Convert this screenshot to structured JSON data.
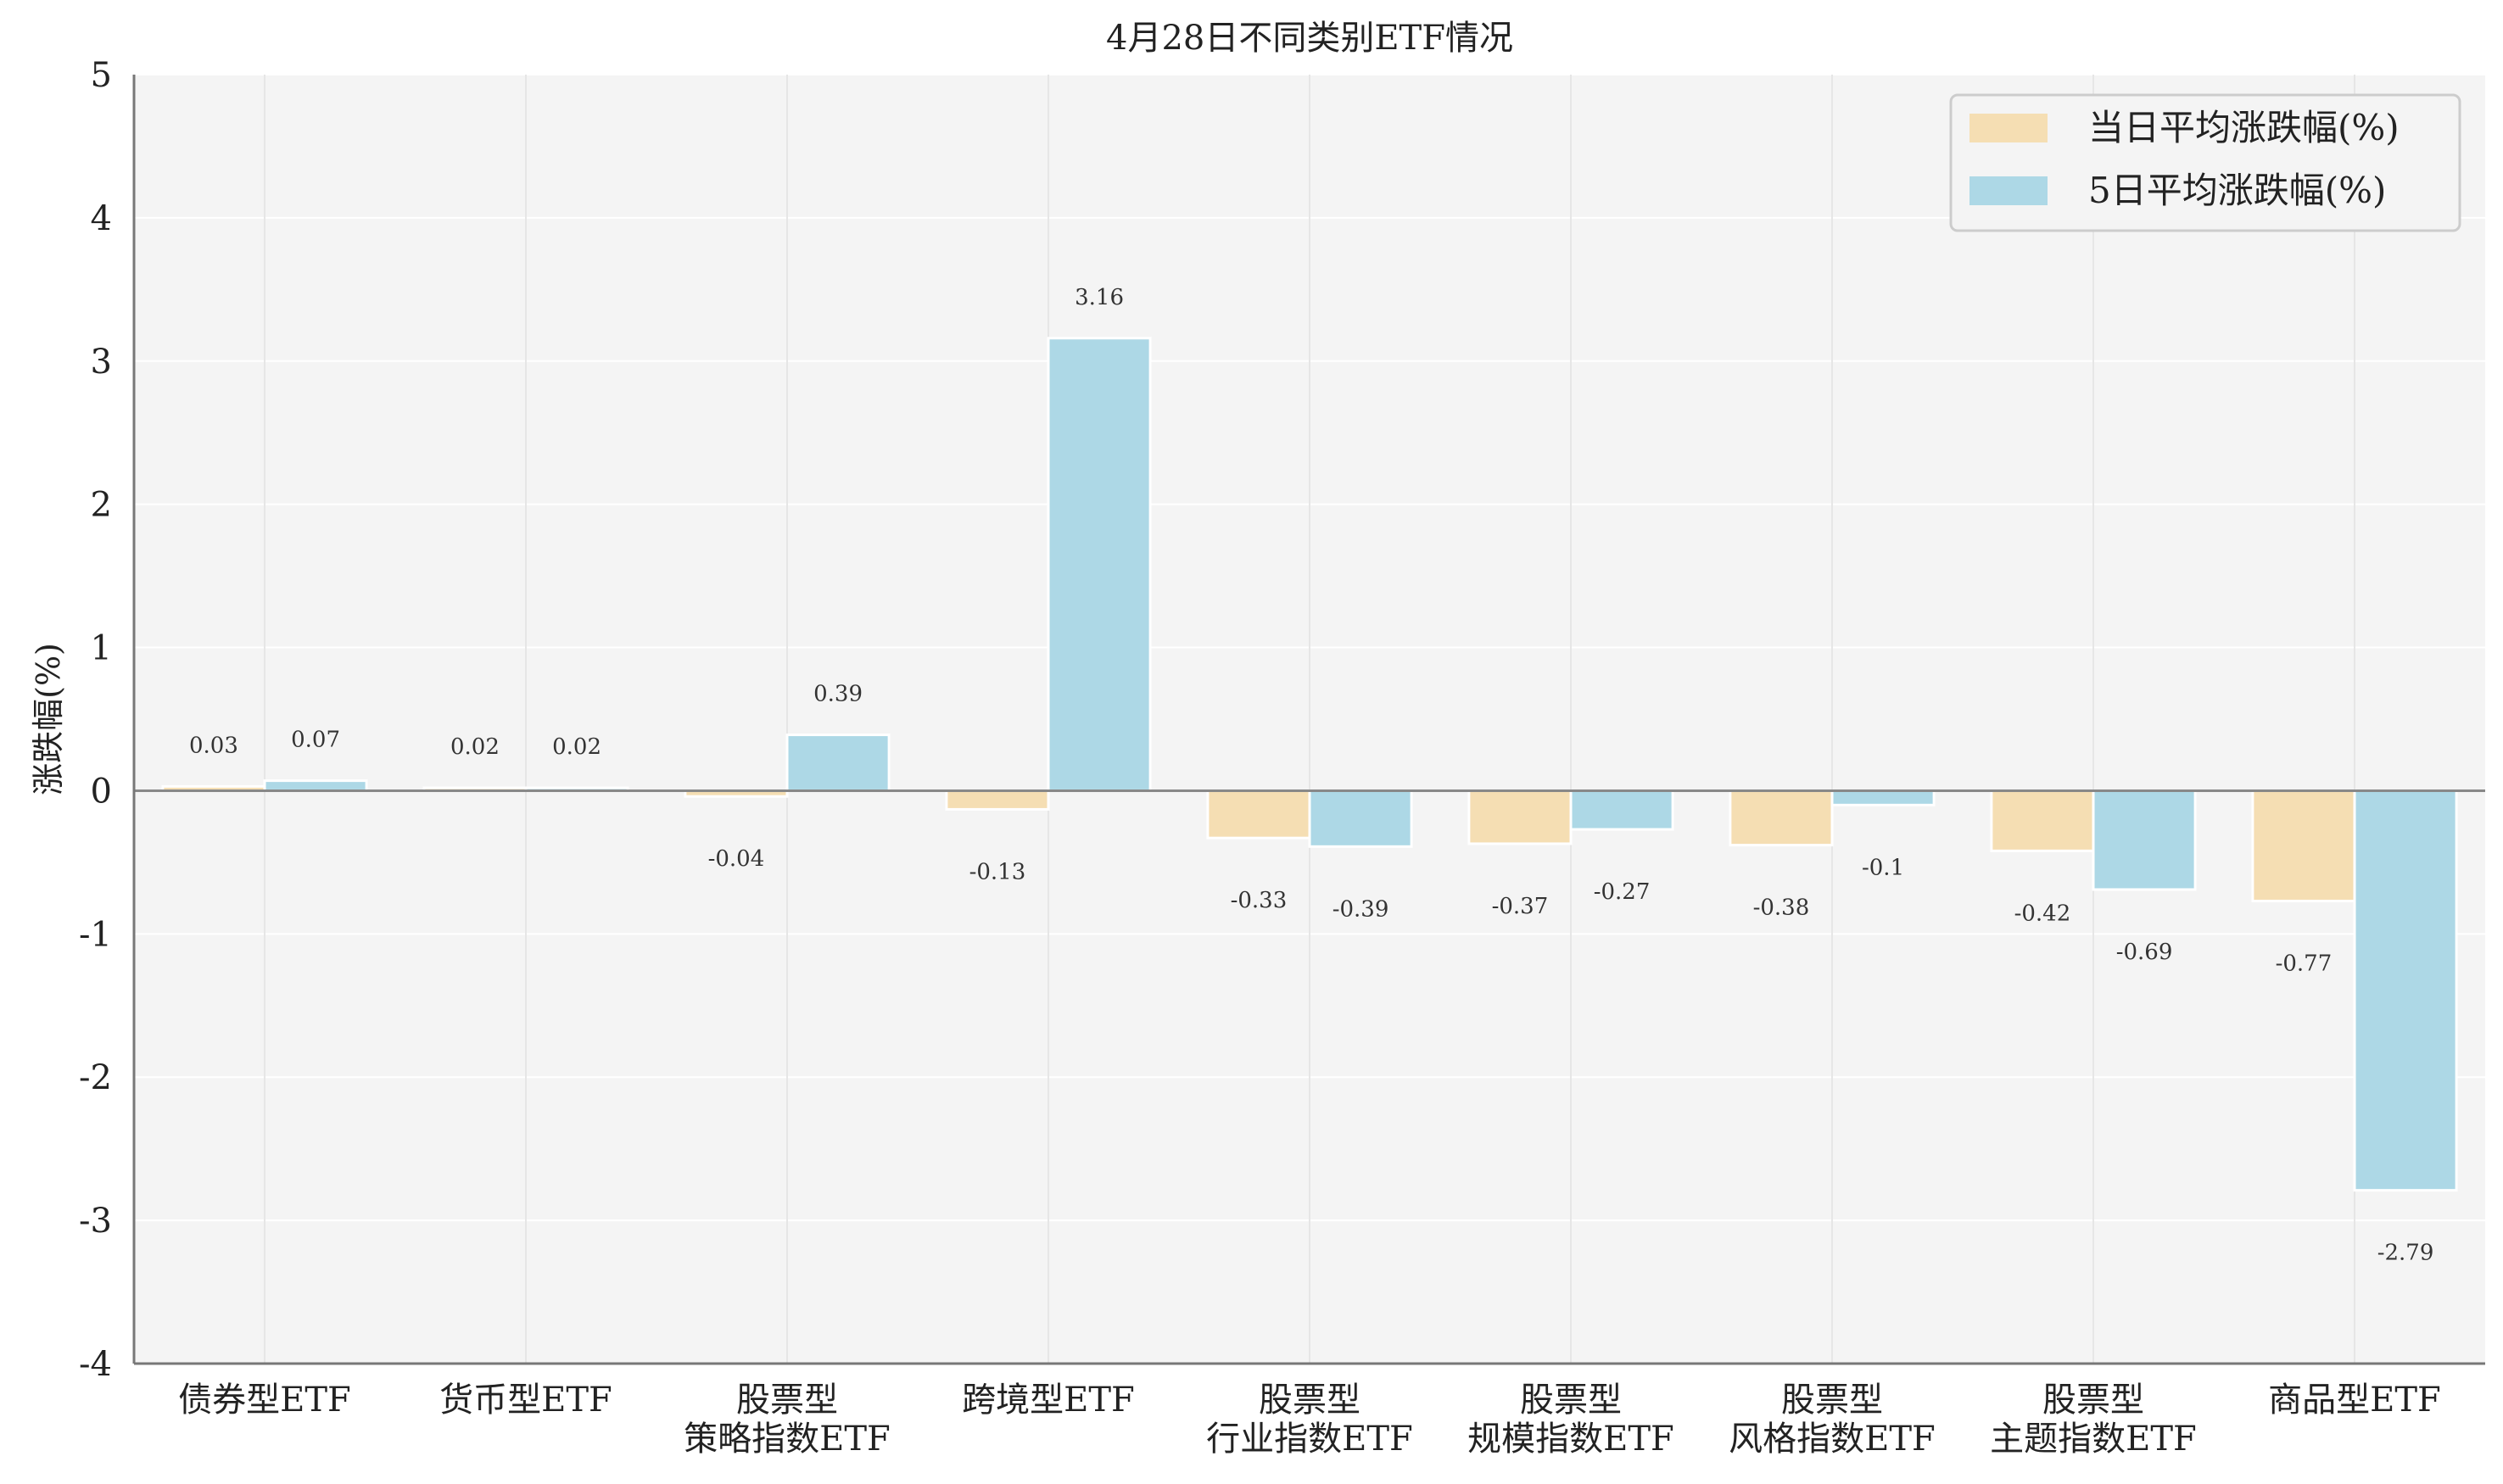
{
  "chart_data": {
    "type": "bar",
    "title": "4月28日不同类别ETF情况",
    "xlabel": "",
    "ylabel": "涨跌幅(%)",
    "ylim": [
      -4,
      5
    ],
    "yticks": [
      "-4",
      "-3",
      "-2",
      "-1",
      "0",
      "1",
      "2",
      "3",
      "4",
      "5"
    ],
    "grid": true,
    "legend_position": "top-right",
    "categories": [
      [
        "债券型ETF"
      ],
      [
        "货币型ETF"
      ],
      [
        "股票型",
        "策略指数ETF"
      ],
      [
        "跨境型ETF"
      ],
      [
        "股票型",
        "行业指数ETF"
      ],
      [
        "股票型",
        "规模指数ETF"
      ],
      [
        "股票型",
        "风格指数ETF"
      ],
      [
        "股票型",
        "主题指数ETF"
      ],
      [
        "商品型ETF"
      ]
    ],
    "series": [
      {
        "name": "当日平均涨跌幅(%)",
        "color": "#f5deb3",
        "values": [
          0.03,
          0.02,
          -0.04,
          -0.13,
          -0.33,
          -0.37,
          -0.38,
          -0.42,
          -0.77
        ]
      },
      {
        "name": "5日平均涨跌幅(%)",
        "color": "#add8e6",
        "values": [
          0.07,
          0.02,
          0.39,
          3.16,
          -0.39,
          -0.27,
          -0.1,
          -0.69,
          -2.79
        ]
      }
    ]
  }
}
